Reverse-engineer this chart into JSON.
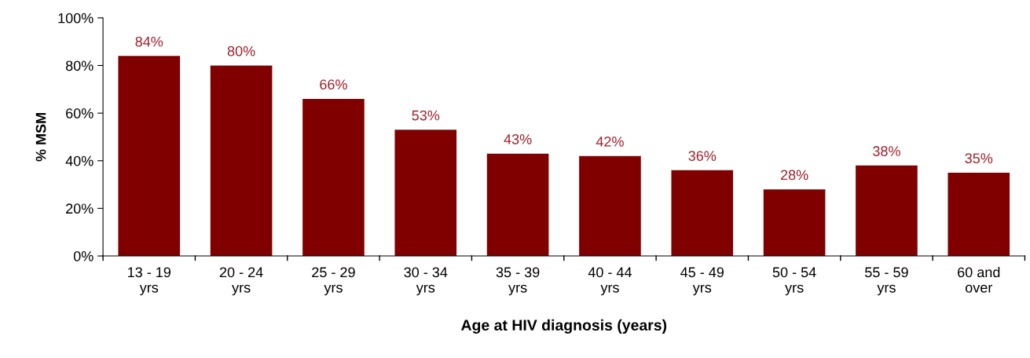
{
  "chart_data": {
    "type": "bar",
    "xlabel": "Age at HIV diagnosis (years)",
    "ylabel": "% MSM",
    "categories": [
      "13 - 19\nyrs",
      "20 - 24\nyrs",
      "25 - 29\nyrs",
      "30 - 34\nyrs",
      "35 - 39\nyrs",
      "40 - 44\nyrs",
      "45 - 49\nyrs",
      "50 - 54\nyrs",
      "55 - 59\nyrs",
      "60 and\nover"
    ],
    "values": [
      84,
      80,
      66,
      53,
      43,
      42,
      36,
      28,
      38,
      35
    ],
    "value_labels": [
      "84%",
      "80%",
      "66%",
      "53%",
      "43%",
      "42%",
      "36%",
      "28%",
      "38%",
      "35%"
    ],
    "color": "#800000",
    "ylim": [
      0,
      100
    ],
    "yticks": [
      {
        "value": 0,
        "label": "0%"
      },
      {
        "value": 20,
        "label": "20%"
      },
      {
        "value": 40,
        "label": "40%"
      },
      {
        "value": 60,
        "label": "60%"
      },
      {
        "value": 80,
        "label": "80%"
      },
      {
        "value": 100,
        "label": "100%"
      }
    ],
    "grid": false
  }
}
